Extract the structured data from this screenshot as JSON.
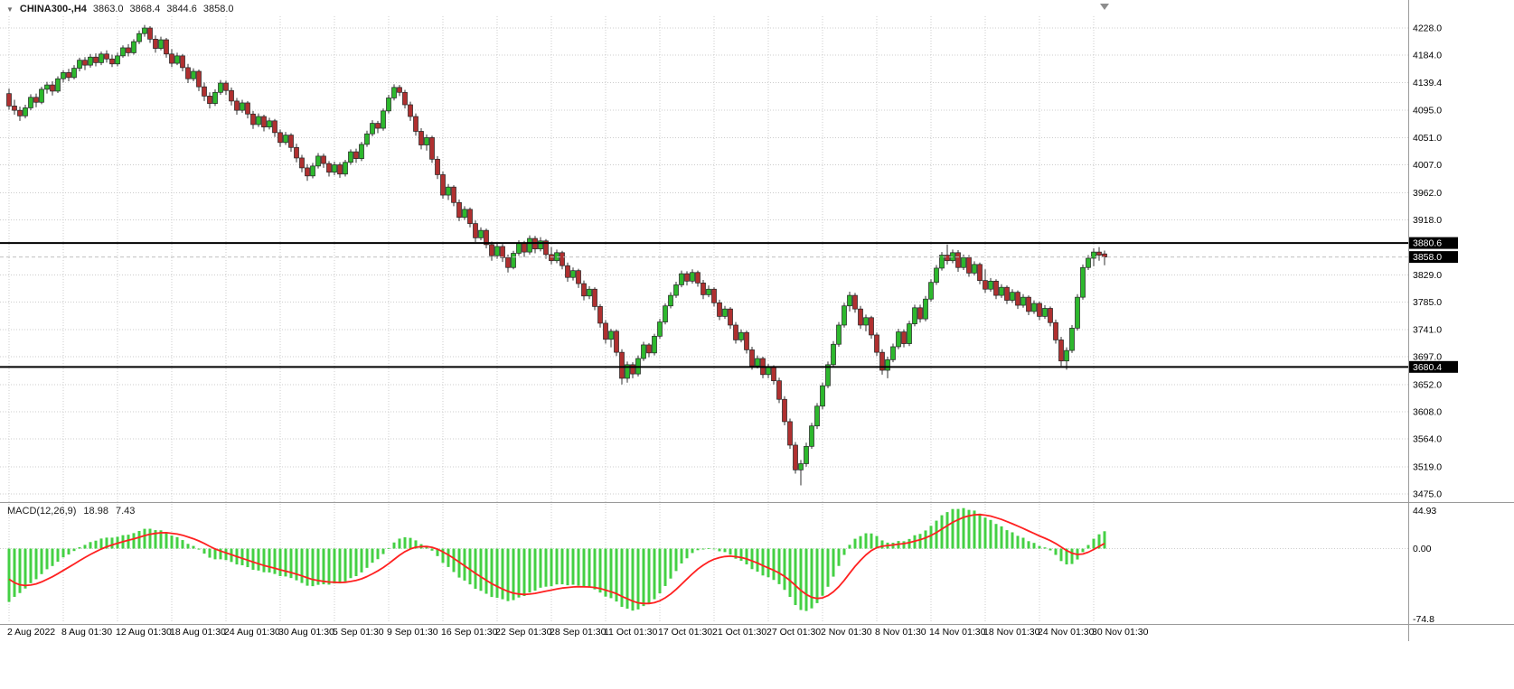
{
  "icons": {
    "chart_menu_icon": "▼",
    "scroll_end_marker_icon": "▼"
  },
  "symbol_label": {
    "symbol_timeframe": "CHINA300-,H4",
    "open": "3863.0",
    "high": "3868.4",
    "low": "3844.6",
    "close": "3858.0"
  },
  "chart_data": {
    "type": "candlestick",
    "symbol": "CHINA300-",
    "timeframe": "H4",
    "grid": true,
    "price_axis": {
      "range": {
        "top": 4247.0,
        "bottom": 3462.0
      },
      "ticks": [
        4228.0,
        4184.0,
        4139.4,
        4095.0,
        4051.0,
        4007.0,
        3962.0,
        3918.0,
        3829.0,
        3785.0,
        3741.0,
        3697.0,
        3652.0,
        3608.0,
        3564.0,
        3519.0,
        3475.0
      ],
      "tags": [
        {
          "label": "3880.6",
          "price": 3880.6,
          "hline": true,
          "current": false
        },
        {
          "label": "3858.0",
          "price": 3858.0,
          "hline": false,
          "current": true
        },
        {
          "label": "3680.4",
          "price": 3680.4,
          "hline": true,
          "current": false
        }
      ]
    },
    "time_axis": {
      "candles_per_label": 10,
      "labels": [
        "2 Aug 2022",
        "8 Aug 01:30",
        "12 Aug 01:30",
        "18 Aug 01:30",
        "24 Aug 01:30",
        "30 Aug 01:30",
        "5 Sep 01:30",
        "9 Sep 01:30",
        "16 Sep 01:30",
        "22 Sep 01:30",
        "28 Sep 01:30",
        "11 Oct 01:30",
        "17 Oct 01:30",
        "21 Oct 01:30",
        "27 Oct 01:30",
        "2 Nov 01:30",
        "8 Nov 01:30",
        "14 Nov 01:30",
        "18 Nov 01:30",
        "24 Nov 01:30",
        "30 Nov 01:30"
      ]
    },
    "candles": [
      [
        4122,
        4130,
        4096,
        4102
      ],
      [
        4102,
        4112,
        4088,
        4095
      ],
      [
        4095,
        4101,
        4078,
        4086
      ],
      [
        4086,
        4104,
        4082,
        4099
      ],
      [
        4099,
        4121,
        4095,
        4116
      ],
      [
        4116,
        4122,
        4100,
        4108
      ],
      [
        4108,
        4133,
        4105,
        4129
      ],
      [
        4129,
        4141,
        4122,
        4136
      ],
      [
        4136,
        4142,
        4119,
        4126
      ],
      [
        4126,
        4150,
        4123,
        4146
      ],
      [
        4146,
        4160,
        4140,
        4156
      ],
      [
        4156,
        4162,
        4142,
        4148
      ],
      [
        4148,
        4168,
        4145,
        4163
      ],
      [
        4163,
        4180,
        4158,
        4176
      ],
      [
        4176,
        4181,
        4160,
        4168
      ],
      [
        4168,
        4186,
        4164,
        4181
      ],
      [
        4181,
        4187,
        4166,
        4172
      ],
      [
        4172,
        4190,
        4168,
        4186
      ],
      [
        4186,
        4192,
        4172,
        4178
      ],
      [
        4178,
        4185,
        4165,
        4170
      ],
      [
        4170,
        4188,
        4166,
        4183
      ],
      [
        4183,
        4200,
        4180,
        4196
      ],
      [
        4196,
        4202,
        4182,
        4188
      ],
      [
        4188,
        4210,
        4185,
        4206
      ],
      [
        4206,
        4224,
        4202,
        4219
      ],
      [
        4219,
        4233,
        4214,
        4228
      ],
      [
        4228,
        4231,
        4204,
        4210
      ],
      [
        4210,
        4216,
        4188,
        4195
      ],
      [
        4195,
        4214,
        4192,
        4209
      ],
      [
        4209,
        4212,
        4180,
        4186
      ],
      [
        4186,
        4194,
        4165,
        4171
      ],
      [
        4171,
        4188,
        4168,
        4183
      ],
      [
        4183,
        4186,
        4158,
        4164
      ],
      [
        4164,
        4170,
        4139,
        4146
      ],
      [
        4146,
        4163,
        4142,
        4158
      ],
      [
        4158,
        4161,
        4126,
        4133
      ],
      [
        4133,
        4140,
        4110,
        4118
      ],
      [
        4118,
        4124,
        4098,
        4106
      ],
      [
        4106,
        4129,
        4102,
        4124
      ],
      [
        4124,
        4144,
        4120,
        4139
      ],
      [
        4139,
        4143,
        4120,
        4127
      ],
      [
        4127,
        4132,
        4103,
        4110
      ],
      [
        4110,
        4115,
        4088,
        4095
      ],
      [
        4095,
        4112,
        4091,
        4107
      ],
      [
        4107,
        4110,
        4082,
        4089
      ],
      [
        4089,
        4094,
        4065,
        4072
      ],
      [
        4072,
        4090,
        4068,
        4085
      ],
      [
        4085,
        4088,
        4061,
        4068
      ],
      [
        4068,
        4083,
        4064,
        4078
      ],
      [
        4078,
        4081,
        4052,
        4059
      ],
      [
        4059,
        4064,
        4036,
        4043
      ],
      [
        4043,
        4060,
        4039,
        4055
      ],
      [
        4055,
        4058,
        4028,
        4035
      ],
      [
        4035,
        4041,
        4011,
        4018
      ],
      [
        4018,
        4023,
        3995,
        4002
      ],
      [
        4002,
        4008,
        3981,
        3989
      ],
      [
        3989,
        4010,
        3985,
        4005
      ],
      [
        4005,
        4026,
        4001,
        4021
      ],
      [
        4021,
        4025,
        4002,
        4009
      ],
      [
        4009,
        4013,
        3988,
        3995
      ],
      [
        3995,
        4012,
        3990,
        4007
      ],
      [
        4007,
        4011,
        3986,
        3992
      ],
      [
        3992,
        4015,
        3988,
        4011
      ],
      [
        4011,
        4032,
        4007,
        4028
      ],
      [
        4028,
        4033,
        4010,
        4017
      ],
      [
        4017,
        4044,
        4013,
        4040
      ],
      [
        4040,
        4062,
        4036,
        4057
      ],
      [
        4057,
        4079,
        4053,
        4074
      ],
      [
        4074,
        4078,
        4058,
        4066
      ],
      [
        4066,
        4098,
        4062,
        4094
      ],
      [
        4094,
        4120,
        4090,
        4115
      ],
      [
        4115,
        4137,
        4111,
        4132
      ],
      [
        4132,
        4136,
        4118,
        4124
      ],
      [
        4124,
        4128,
        4098,
        4104
      ],
      [
        4104,
        4109,
        4078,
        4085
      ],
      [
        4085,
        4090,
        4054,
        4061
      ],
      [
        4061,
        4066,
        4032,
        4039
      ],
      [
        4039,
        4056,
        4030,
        4051
      ],
      [
        4051,
        4054,
        4010,
        4016
      ],
      [
        4016,
        4021,
        3984,
        3991
      ],
      [
        3991,
        3996,
        3952,
        3958
      ],
      [
        3958,
        3976,
        3950,
        3971
      ],
      [
        3971,
        3974,
        3940,
        3946
      ],
      [
        3946,
        3951,
        3916,
        3922
      ],
      [
        3922,
        3940,
        3918,
        3935
      ],
      [
        3935,
        3938,
        3906,
        3912
      ],
      [
        3912,
        3917,
        3882,
        3889
      ],
      [
        3889,
        3906,
        3885,
        3901
      ],
      [
        3901,
        3904,
        3872,
        3878
      ],
      [
        3878,
        3883,
        3852,
        3860
      ],
      [
        3860,
        3880,
        3855,
        3875
      ],
      [
        3875,
        3879,
        3850,
        3857
      ],
      [
        3857,
        3862,
        3833,
        3841
      ],
      [
        3841,
        3868,
        3838,
        3864
      ],
      [
        3864,
        3885,
        3860,
        3880
      ],
      [
        3880,
        3884,
        3858,
        3866
      ],
      [
        3866,
        3893,
        3862,
        3888
      ],
      [
        3888,
        3892,
        3864,
        3871
      ],
      [
        3871,
        3890,
        3867,
        3884
      ],
      [
        3884,
        3887,
        3855,
        3862
      ],
      [
        3862,
        3874,
        3846,
        3852
      ],
      [
        3852,
        3870,
        3848,
        3865
      ],
      [
        3865,
        3868,
        3838,
        3844
      ],
      [
        3844,
        3849,
        3818,
        3825
      ],
      [
        3825,
        3841,
        3820,
        3836
      ],
      [
        3836,
        3839,
        3808,
        3815
      ],
      [
        3815,
        3820,
        3788,
        3795
      ],
      [
        3795,
        3811,
        3790,
        3806
      ],
      [
        3806,
        3809,
        3772,
        3778
      ],
      [
        3778,
        3782,
        3744,
        3751
      ],
      [
        3751,
        3756,
        3718,
        3725
      ],
      [
        3725,
        3742,
        3712,
        3738
      ],
      [
        3738,
        3741,
        3698,
        3704
      ],
      [
        3704,
        3709,
        3652,
        3662
      ],
      [
        3662,
        3689,
        3655,
        3684
      ],
      [
        3684,
        3688,
        3662,
        3669
      ],
      [
        3669,
        3699,
        3665,
        3694
      ],
      [
        3694,
        3721,
        3690,
        3716
      ],
      [
        3716,
        3719,
        3696,
        3703
      ],
      [
        3703,
        3734,
        3699,
        3730
      ],
      [
        3730,
        3758,
        3726,
        3753
      ],
      [
        3753,
        3783,
        3749,
        3779
      ],
      [
        3779,
        3801,
        3775,
        3796
      ],
      [
        3796,
        3818,
        3792,
        3813
      ],
      [
        3813,
        3836,
        3809,
        3831
      ],
      [
        3831,
        3835,
        3812,
        3819
      ],
      [
        3819,
        3838,
        3815,
        3833
      ],
      [
        3833,
        3836,
        3810,
        3816
      ],
      [
        3816,
        3821,
        3790,
        3797
      ],
      [
        3797,
        3812,
        3793,
        3806
      ],
      [
        3806,
        3809,
        3778,
        3784
      ],
      [
        3784,
        3789,
        3756,
        3762
      ],
      [
        3762,
        3779,
        3758,
        3774
      ],
      [
        3774,
        3777,
        3742,
        3748
      ],
      [
        3748,
        3753,
        3718,
        3724
      ],
      [
        3724,
        3741,
        3720,
        3736
      ],
      [
        3736,
        3739,
        3702,
        3708
      ],
      [
        3708,
        3713,
        3676,
        3682
      ],
      [
        3682,
        3699,
        3678,
        3694
      ],
      [
        3694,
        3697,
        3662,
        3668
      ],
      [
        3668,
        3685,
        3662,
        3680
      ],
      [
        3680,
        3683,
        3652,
        3658
      ],
      [
        3658,
        3663,
        3622,
        3628
      ],
      [
        3628,
        3633,
        3586,
        3592
      ],
      [
        3592,
        3597,
        3548,
        3554
      ],
      [
        3554,
        3559,
        3508,
        3514
      ],
      [
        3514,
        3530,
        3489,
        3524
      ],
      [
        3524,
        3558,
        3519,
        3552
      ],
      [
        3552,
        3590,
        3548,
        3585
      ],
      [
        3585,
        3622,
        3580,
        3617
      ],
      [
        3617,
        3655,
        3612,
        3650
      ],
      [
        3650,
        3689,
        3646,
        3684
      ],
      [
        3684,
        3722,
        3680,
        3717
      ],
      [
        3717,
        3753,
        3713,
        3748
      ],
      [
        3748,
        3784,
        3744,
        3779
      ],
      [
        3779,
        3802,
        3770,
        3796
      ],
      [
        3796,
        3800,
        3768,
        3774
      ],
      [
        3774,
        3779,
        3742,
        3748
      ],
      [
        3748,
        3765,
        3738,
        3760
      ],
      [
        3760,
        3763,
        3726,
        3732
      ],
      [
        3732,
        3736,
        3698,
        3704
      ],
      [
        3704,
        3709,
        3668,
        3675
      ],
      [
        3675,
        3697,
        3662,
        3692
      ],
      [
        3692,
        3718,
        3688,
        3713
      ],
      [
        3713,
        3742,
        3709,
        3737
      ],
      [
        3737,
        3741,
        3712,
        3718
      ],
      [
        3718,
        3755,
        3714,
        3750
      ],
      [
        3750,
        3781,
        3746,
        3776
      ],
      [
        3776,
        3781,
        3752,
        3758
      ],
      [
        3758,
        3795,
        3754,
        3790
      ],
      [
        3790,
        3822,
        3786,
        3817
      ],
      [
        3817,
        3845,
        3813,
        3840
      ],
      [
        3840,
        3866,
        3836,
        3861
      ],
      [
        3861,
        3878,
        3846,
        3852
      ],
      [
        3852,
        3870,
        3848,
        3865
      ],
      [
        3865,
        3869,
        3834,
        3841
      ],
      [
        3841,
        3862,
        3837,
        3857
      ],
      [
        3857,
        3861,
        3826,
        3832
      ],
      [
        3832,
        3851,
        3828,
        3846
      ],
      [
        3846,
        3849,
        3814,
        3820
      ],
      [
        3820,
        3838,
        3800,
        3806
      ],
      [
        3806,
        3824,
        3802,
        3819
      ],
      [
        3819,
        3822,
        3790,
        3796
      ],
      [
        3796,
        3814,
        3792,
        3809
      ],
      [
        3809,
        3812,
        3782,
        3788
      ],
      [
        3788,
        3806,
        3784,
        3801
      ],
      [
        3801,
        3804,
        3774,
        3780
      ],
      [
        3780,
        3798,
        3776,
        3793
      ],
      [
        3793,
        3796,
        3764,
        3770
      ],
      [
        3770,
        3788,
        3766,
        3783
      ],
      [
        3783,
        3786,
        3756,
        3762
      ],
      [
        3762,
        3780,
        3758,
        3775
      ],
      [
        3775,
        3778,
        3746,
        3752
      ],
      [
        3752,
        3757,
        3718,
        3724
      ],
      [
        3724,
        3729,
        3682,
        3690
      ],
      [
        3690,
        3712,
        3676,
        3707
      ],
      [
        3707,
        3748,
        3703,
        3743
      ],
      [
        3743,
        3798,
        3739,
        3793
      ],
      [
        3793,
        3846,
        3789,
        3841
      ],
      [
        3841,
        3861,
        3837,
        3856
      ],
      [
        3856,
        3872,
        3843,
        3866
      ],
      [
        3866,
        3874,
        3852,
        3861
      ],
      [
        3863,
        3868.4,
        3844.6,
        3858
      ]
    ],
    "macd": {
      "label": "MACD(12,26,9)",
      "value_main": "18.98",
      "value_signal": "7.43",
      "scale": {
        "max": 44.93,
        "min": -74.8
      },
      "scale_labels": {
        "max": "44.93",
        "zero": "0.00",
        "min": "-74.8"
      },
      "seed": {
        "ema12": 4077,
        "ema26": 4137,
        "signal": -25
      }
    },
    "colors": {
      "background": "#ffffff",
      "up": "#2db82d",
      "down": "#b03030",
      "wick": "#303030",
      "body_border": "#222222",
      "grid": "#cccccc",
      "macd_hist": "#44d044",
      "macd_signal": "#ff2020",
      "hline": "#000000",
      "current_line": "#c0c0c0",
      "axis_text": "#000000",
      "tag_bg": "#000000",
      "tag_text": "#ffffff",
      "frame": "#9a9a9a",
      "marker": "#8d8d8d"
    }
  }
}
